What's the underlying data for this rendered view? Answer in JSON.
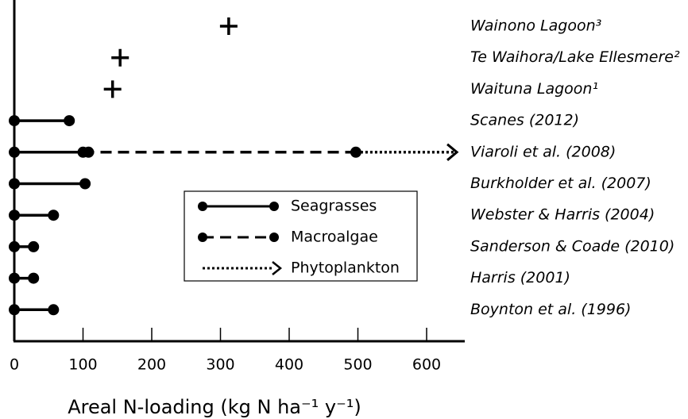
{
  "chart_data": {
    "type": "dumbbell",
    "x_label": "Areal N-loading (kg N ha⁻¹ y⁻¹)",
    "categories": [
      "Wainono Lagoon³",
      "Te Waihora/Lake Ellesmere²",
      "Waituna Lagoon¹",
      "Scanes (2012)",
      "Viaroli et al. (2008)",
      "Burkholder et al. (2007)",
      "Webster & Harris (2004)",
      "Sanderson & Coade (2010)",
      "Harris (2001)",
      "Boynton et al. (1996)"
    ],
    "xlim": [
      0,
      655
    ],
    "xticks": [
      0,
      100,
      200,
      300,
      400,
      500,
      600
    ],
    "plus_values": [
      312,
      154,
      143,
      null,
      null,
      null,
      null,
      null,
      null,
      null
    ],
    "series": [
      {
        "name": "Seagrasses",
        "color": "#000000",
        "line_style": "solid",
        "end": "dot",
        "low": [
          null,
          null,
          null,
          0,
          0,
          0,
          0,
          0,
          0,
          0
        ],
        "high": [
          null,
          null,
          null,
          80,
          108,
          103,
          57,
          28,
          28,
          57
        ]
      },
      {
        "name": "Macroalgae",
        "color": "#000000",
        "line_style": "dashed",
        "end": "dot",
        "low": [
          null,
          null,
          null,
          null,
          100,
          null,
          null,
          null,
          null,
          null
        ],
        "high": [
          null,
          null,
          null,
          null,
          497,
          null,
          null,
          null,
          null,
          null
        ]
      },
      {
        "name": "Phytoplankton",
        "color": "#000000",
        "line_style": "dotted",
        "end": "arrow",
        "low": [
          null,
          null,
          null,
          null,
          497,
          null,
          null,
          null,
          null,
          null
        ],
        "high": [
          null,
          null,
          null,
          null,
          644,
          null,
          null,
          null,
          null,
          null
        ]
      }
    ]
  }
}
